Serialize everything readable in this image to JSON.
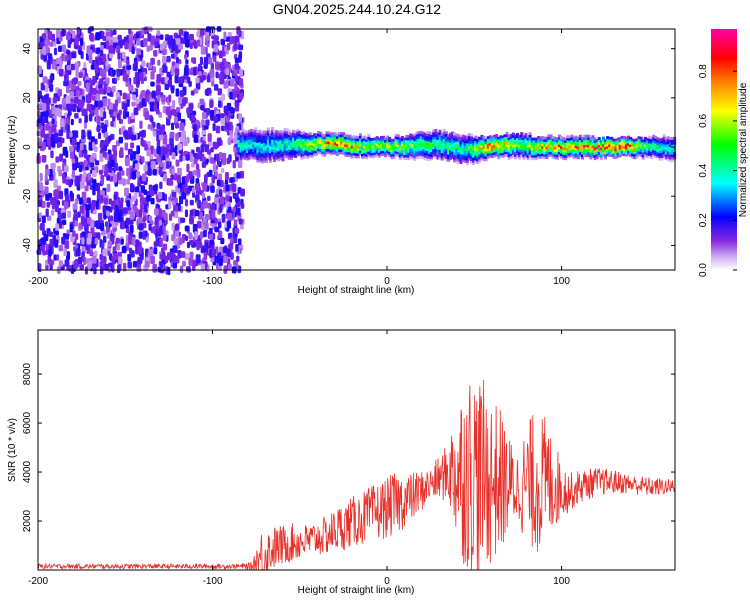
{
  "title": "GN04.2025.244.10.24.G12",
  "chart_data": [
    {
      "type": "heatmap",
      "xlabel": "Height of straight line (km)",
      "ylabel": "Frequency (Hz)",
      "xlim": [
        -200,
        165
      ],
      "ylim": [
        -50,
        48
      ],
      "xticks": [
        -200,
        -100,
        0,
        100
      ],
      "xtick_labels": [
        "-200",
        "-100",
        "0",
        "100"
      ],
      "yticks": [
        -40,
        -20,
        0,
        20,
        40
      ],
      "ytick_labels": [
        "-40",
        "-20",
        "0",
        "20",
        "40"
      ],
      "colorbar": {
        "label": "Normalized spectral amplitude",
        "range": [
          0,
          0.97
        ],
        "ticks": [
          0.0,
          0.2,
          0.4,
          0.6,
          0.8
        ],
        "tick_labels": [
          "0.0",
          "0.2",
          "0.4",
          "0.6",
          "0.8"
        ],
        "colormap": [
          "#ffffff",
          "#8a2be2",
          "#0000ff",
          "#00ffff",
          "#00ff00",
          "#ffff00",
          "#ff8000",
          "#ff0000",
          "#ff00ff"
        ]
      },
      "noise_region": {
        "x_range": [
          -200,
          -83
        ],
        "y_range": [
          -50,
          48
        ],
        "amplitude": 0.15
      },
      "signal_band": [
        {
          "x": -85,
          "freq": 1.0,
          "halfwidth": 4,
          "amplitude": 0.45
        },
        {
          "x": -70,
          "freq": 0.5,
          "halfwidth": 5,
          "amplitude": 0.4
        },
        {
          "x": -55,
          "freq": 1.0,
          "halfwidth": 4,
          "amplitude": 0.45
        },
        {
          "x": -40,
          "freq": 1.5,
          "halfwidth": 2,
          "amplitude": 0.75
        },
        {
          "x": -25,
          "freq": 1.0,
          "halfwidth": 2,
          "amplitude": 0.85
        },
        {
          "x": -10,
          "freq": 0.0,
          "halfwidth": 2,
          "amplitude": 0.6
        },
        {
          "x": 0,
          "freq": 0.0,
          "halfwidth": 1.5,
          "amplitude": 0.7
        },
        {
          "x": 15,
          "freq": 0.5,
          "halfwidth": 3,
          "amplitude": 0.55
        },
        {
          "x": 30,
          "freq": 1.0,
          "halfwidth": 4,
          "amplitude": 0.5
        },
        {
          "x": 45,
          "freq": -1.0,
          "halfwidth": 4,
          "amplitude": 0.45
        },
        {
          "x": 60,
          "freq": 0.0,
          "halfwidth": 2,
          "amplitude": 0.9
        },
        {
          "x": 75,
          "freq": 1.0,
          "halfwidth": 3,
          "amplitude": 0.55
        },
        {
          "x": 90,
          "freq": 0.0,
          "halfwidth": 2,
          "amplitude": 0.75
        },
        {
          "x": 105,
          "freq": 0.0,
          "halfwidth": 2,
          "amplitude": 0.8
        },
        {
          "x": 120,
          "freq": 0.0,
          "halfwidth": 2,
          "amplitude": 0.85
        },
        {
          "x": 135,
          "freq": 0.0,
          "halfwidth": 1.5,
          "amplitude": 0.95
        },
        {
          "x": 150,
          "freq": 0.0,
          "halfwidth": 2,
          "amplitude": 0.5
        },
        {
          "x": 165,
          "freq": -0.5,
          "halfwidth": 3,
          "amplitude": 0.4
        }
      ]
    },
    {
      "type": "line",
      "xlabel": "Height of straight line (km)",
      "ylabel": "SNR (10 * v/v)",
      "xlim": [
        -200,
        165
      ],
      "ylim": [
        0,
        9800
      ],
      "xticks": [
        -200,
        -100,
        0,
        100
      ],
      "xtick_labels": [
        "-200",
        "-100",
        "0",
        "100"
      ],
      "yticks": [
        2000,
        4000,
        6000,
        8000
      ],
      "ytick_labels": [
        "2000",
        "4000",
        "6000",
        "8000"
      ],
      "series": [
        {
          "color": "#e8302a",
          "x": [
            -200,
            -180,
            -160,
            -140,
            -120,
            -100,
            -85,
            -78,
            -72,
            -65,
            -55,
            -45,
            -35,
            -25,
            -15,
            -5,
            5,
            15,
            25,
            35,
            40,
            45,
            50,
            55,
            60,
            65,
            70,
            75,
            80,
            85,
            90,
            95,
            100,
            105,
            110,
            120,
            130,
            140,
            150,
            165
          ],
          "center": [
            150,
            150,
            150,
            150,
            150,
            150,
            150,
            150,
            500,
            900,
            1100,
            1200,
            1400,
            1800,
            2100,
            2400,
            2700,
            3000,
            3500,
            4000,
            4000,
            4000,
            3900,
            3800,
            3700,
            3600,
            3500,
            3400,
            3500,
            3600,
            3600,
            3500,
            3300,
            3200,
            3400,
            3600,
            3600,
            3500,
            3400,
            3400
          ],
          "amplitude": [
            100,
            100,
            100,
            100,
            100,
            100,
            100,
            150,
            1200,
            900,
            800,
            700,
            800,
            1000,
            1100,
            1200,
            1300,
            1000,
            700,
            1200,
            3000,
            4000,
            4500,
            4000,
            3500,
            3000,
            2000,
            1500,
            2500,
            3000,
            2800,
            2000,
            1200,
            800,
            700,
            600,
            500,
            400,
            400,
            300
          ]
        }
      ]
    }
  ]
}
